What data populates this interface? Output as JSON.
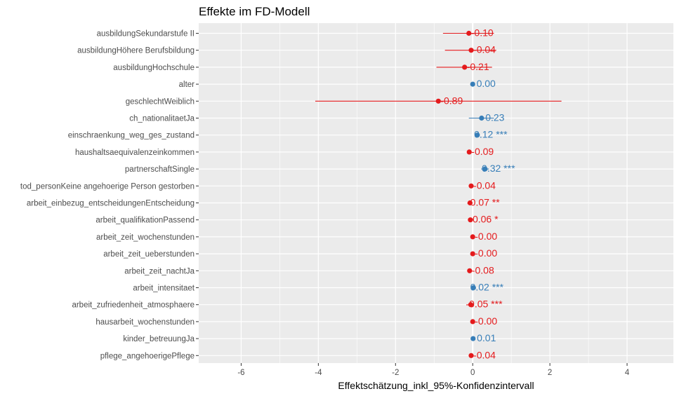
{
  "chart_data": {
    "type": "forest",
    "title": "Effekte im FD-Modell",
    "xlabel": "Effektschätzung_inkl_95%-Konfidenzintervall",
    "ylabel": "",
    "xlim": [
      -7.1,
      5.2
    ],
    "x_ticks": [
      -6,
      -4,
      -2,
      0,
      2,
      4
    ],
    "grid": true,
    "colors": {
      "positive": "#377eb8",
      "negative": "#e41a1c",
      "zero_line": "#ffffff",
      "panel": "#ebebeb",
      "grid": "#ffffff"
    },
    "rows": [
      {
        "term": "ausbildungSekundarstufe II",
        "estimate": -0.1,
        "lower": -0.77,
        "upper": 0.55,
        "label": "-0.10",
        "sign": "negative"
      },
      {
        "term": "ausbildungHöhere Berufsbildung",
        "estimate": -0.04,
        "lower": -0.72,
        "upper": 0.61,
        "label": "-0.04",
        "sign": "negative"
      },
      {
        "term": "ausbildungHochschule",
        "estimate": -0.21,
        "lower": -0.94,
        "upper": 0.5,
        "label": "-0.21",
        "sign": "negative"
      },
      {
        "term": "alter",
        "estimate": 0.0,
        "lower": -0.01,
        "upper": 0.01,
        "label": "0.00",
        "sign": "positive"
      },
      {
        "term": "geschlechtWeiblich",
        "estimate": -0.89,
        "lower": -4.08,
        "upper": 2.3,
        "label": "-0.89",
        "sign": "negative"
      },
      {
        "term": "ch_nationalitaetJa",
        "estimate": 0.23,
        "lower": -0.1,
        "upper": 0.55,
        "label": "0.23",
        "sign": "positive"
      },
      {
        "term": "einschraenkung_weg_ges_zustand",
        "estimate": 0.12,
        "lower": 0.07,
        "upper": 0.17,
        "label": "0.12 ***",
        "sign": "positive"
      },
      {
        "term": "haushaltsaequivalenzeinkommen",
        "estimate": -0.09,
        "lower": -0.13,
        "upper": -0.05,
        "label": "-0.09",
        "sign": "negative"
      },
      {
        "term": "partnerschaftSingle",
        "estimate": 0.32,
        "lower": 0.22,
        "upper": 0.42,
        "label": "0.32 ***",
        "sign": "positive"
      },
      {
        "term": "tod_personKeine angehoerige Person gestorben",
        "estimate": -0.04,
        "lower": -0.09,
        "upper": 0.01,
        "label": "-0.04",
        "sign": "negative"
      },
      {
        "term": "arbeit_einbezug_entscheidungenEntscheidung",
        "estimate": -0.07,
        "lower": -0.11,
        "upper": -0.03,
        "label": "-0.07 **",
        "sign": "negative"
      },
      {
        "term": "arbeit_qualifikationPassend",
        "estimate": -0.06,
        "lower": -0.1,
        "upper": -0.02,
        "label": "-0.06 *",
        "sign": "negative"
      },
      {
        "term": "arbeit_zeit_wochenstunden",
        "estimate": -0.0,
        "lower": -0.01,
        "upper": 0.01,
        "label": "-0.00",
        "sign": "negative"
      },
      {
        "term": "arbeit_zeit_ueberstunden",
        "estimate": -0.0,
        "lower": -0.01,
        "upper": 0.01,
        "label": "-0.00",
        "sign": "negative"
      },
      {
        "term": "arbeit_zeit_nachtJa",
        "estimate": -0.08,
        "lower": -0.14,
        "upper": -0.02,
        "label": "-0.08",
        "sign": "negative"
      },
      {
        "term": "arbeit_intensitaet",
        "estimate": 0.02,
        "lower": 0.01,
        "upper": 0.03,
        "label": "0.02 ***",
        "sign": "positive"
      },
      {
        "term": "arbeit_zufriedenheit_atmosphaere",
        "estimate": -0.05,
        "lower": -0.07,
        "upper": -0.03,
        "label": "-0.05 ***",
        "sign": "negative"
      },
      {
        "term": "hausarbeit_wochenstunden",
        "estimate": -0.0,
        "lower": -0.01,
        "upper": 0.01,
        "label": "-0.00",
        "sign": "negative"
      },
      {
        "term": "kinder_betreuungJa",
        "estimate": 0.01,
        "lower": -0.03,
        "upper": 0.05,
        "label": "0.01",
        "sign": "positive"
      },
      {
        "term": "pflege_angehoerigePflege",
        "estimate": -0.04,
        "lower": -0.08,
        "upper": 0.0,
        "label": "-0.04",
        "sign": "negative"
      }
    ]
  }
}
